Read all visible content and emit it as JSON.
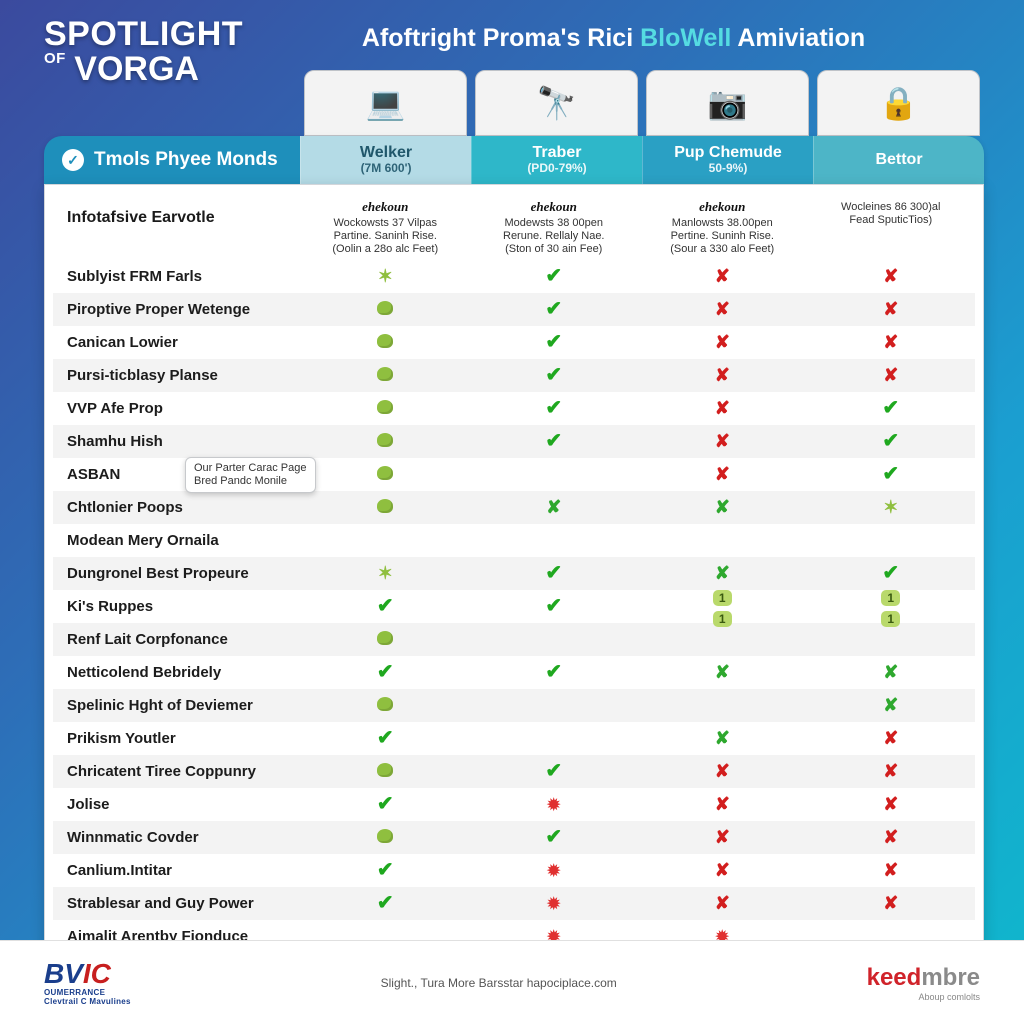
{
  "header": {
    "logo_line1": "SPOTLIGHT",
    "logo_of": "OF",
    "logo_line2": "VORGA",
    "title_pre": "Afoftright Proma's Rici ",
    "title_accent": "BloWell",
    "title_post": " Amiviation"
  },
  "tabs": {
    "left_label": "Tmols Phyee Monds",
    "columns": [
      {
        "name": "Welker",
        "sub": "(7M 600')"
      },
      {
        "name": "Traber",
        "sub": "(PD0-79%)"
      },
      {
        "name": "Pup Chemude",
        "sub": "50-9%)"
      },
      {
        "name": "Bettor",
        "sub": ""
      }
    ]
  },
  "subheader": {
    "label": "Infotafsive Earvotle",
    "cols": [
      {
        "brand": "ehekoun",
        "l1": "Wockowsts 37 Vilpas",
        "l2": "Partine. Saninh Rise.",
        "l3": "(Oolin a 28o alc Feet)"
      },
      {
        "brand": "ehekoun",
        "l1": "Modewsts 38 00pen",
        "l2": "Rerune. Rellaly Nae.",
        "l3": "(Ston of 30 ain Fee)"
      },
      {
        "brand": "ehekoun",
        "l1": "Manlowsts 38.00pen",
        "l2": "Pertine. Suninh Rise.",
        "l3": "(Sour a 330 alo Feet)"
      },
      {
        "brand": "",
        "l1": "Wocleines 86 300)al",
        "l2": "Fead SputicTios)",
        "l3": ""
      }
    ]
  },
  "product_icons": [
    "💻",
    "🔭",
    "📷",
    "🔒"
  ],
  "tooltip": {
    "l1": "Our Parter Carac Page",
    "l2": "Bred Pandc Monile"
  },
  "features": [
    {
      "label": "Sublyist FRM Farls",
      "cells": [
        "star",
        "check",
        "x",
        "x"
      ]
    },
    {
      "label": "Piroptive Proper Wetenge",
      "cells": [
        "blob",
        "check",
        "x",
        "x"
      ]
    },
    {
      "label": "Canican Lowier",
      "cells": [
        "blob",
        "check",
        "x",
        "x"
      ]
    },
    {
      "label": "Pursi-ticblasy Planse",
      "cells": [
        "blob",
        "check",
        "x",
        "x"
      ]
    },
    {
      "label": "VVP Afe Prop",
      "cells": [
        "blob",
        "check",
        "x",
        "check"
      ]
    },
    {
      "label": "Shamhu Hish",
      "cells": [
        "blob",
        "check",
        "x",
        "check"
      ]
    },
    {
      "label": "ASBAN",
      "cells": [
        "blob",
        "",
        "x",
        "check"
      ]
    },
    {
      "label": "Chtlonier Poops",
      "cells": [
        "blob",
        "xgreen",
        "xgreen",
        "star"
      ]
    },
    {
      "label": "Modean Mery Ornaila",
      "cells": [
        "",
        "",
        "",
        ""
      ]
    },
    {
      "label": "Dungronel Best Propeure",
      "cells": [
        "star",
        "check",
        "xgreen",
        "check"
      ]
    },
    {
      "label": "Ki's Ruppes",
      "cells": [
        "check",
        "check",
        "num2",
        "num2"
      ]
    },
    {
      "label": "Renf Lait Corpfonance",
      "cells": [
        "blob",
        "",
        "",
        ""
      ]
    },
    {
      "label": "Netticolend Bebridely",
      "cells": [
        "check",
        "check",
        "xgreen",
        "xgreen"
      ]
    },
    {
      "label": "Spelinic Hght of Deviemer",
      "cells": [
        "blob",
        "",
        "",
        "xgreen"
      ]
    },
    {
      "label": "Prikism Youtler",
      "cells": [
        "check",
        "",
        "xgreen",
        "x"
      ]
    },
    {
      "label": "Chricatent Tiree Coppunry",
      "cells": [
        "blob",
        "check",
        "x",
        "x"
      ]
    },
    {
      "label": "Jolise",
      "cells": [
        "check",
        "burst",
        "x",
        "x"
      ]
    },
    {
      "label": "Winnmatic Covder",
      "cells": [
        "blob",
        "check",
        "x",
        "x"
      ]
    },
    {
      "label": "Canlium.Intitar",
      "cells": [
        "check",
        "burst",
        "x",
        "x"
      ]
    },
    {
      "label": "Strablesar and Guy Power",
      "cells": [
        "check",
        "burst",
        "x",
        "x"
      ]
    },
    {
      "label": "Aimalit Arentby Fionduce",
      "cells": [
        "",
        "burst",
        "burst",
        ""
      ]
    }
  ],
  "footer": {
    "bvic_sub1": "OUMERRANCE",
    "bvic_sub2": "Clevtrail C Mavulines",
    "center": "Slight., Tura More Barsstar hapociplace.com",
    "keed_1": "keed",
    "keed_2": "mbre",
    "keed_sub": "Aboup comlolts"
  },
  "colors": {
    "green_check": "#1fa81f",
    "red_x": "#d21e1e",
    "blob": "#8fbf3f"
  }
}
